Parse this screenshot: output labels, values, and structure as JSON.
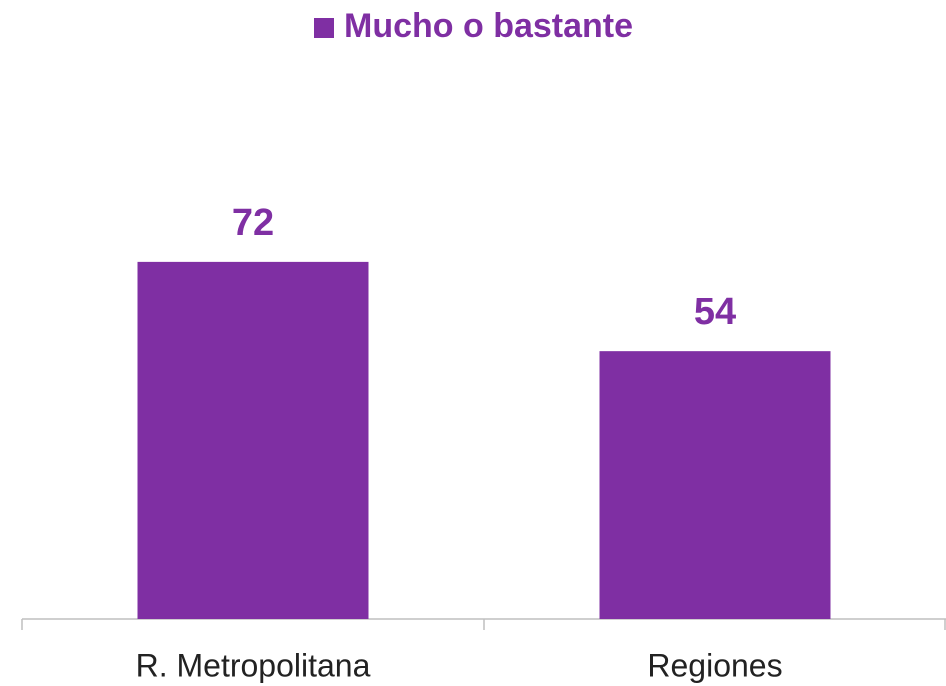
{
  "chart_data": {
    "type": "bar",
    "categories": [
      "R. Metropolitana",
      "Regiones"
    ],
    "series": [
      {
        "name": "Mucho o bastante",
        "color": "#7f2fa3",
        "values": [
          72,
          54
        ]
      }
    ],
    "ylim": [
      0,
      100
    ],
    "legend": "top"
  }
}
